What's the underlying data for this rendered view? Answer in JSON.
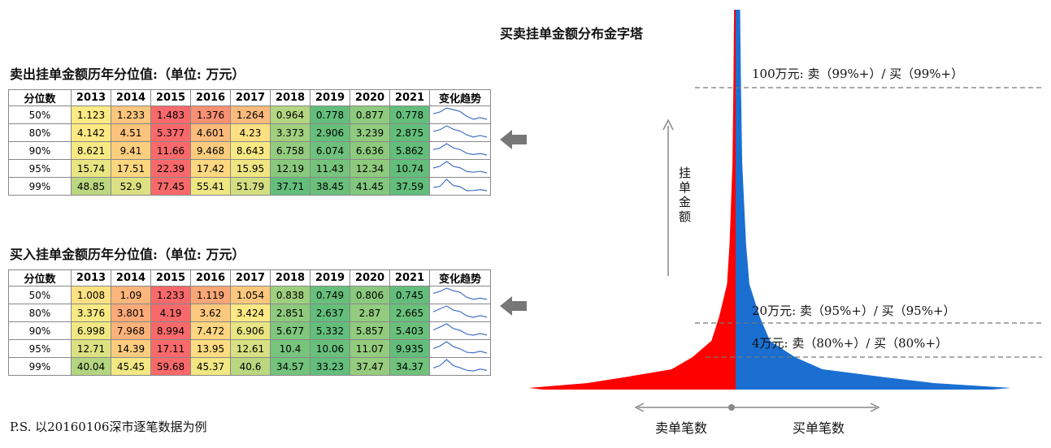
{
  "sell_table": {
    "title": "卖出挂单金额历年分位值:（单位: 万元）",
    "header": [
      "分位数",
      "2013",
      "2014",
      "2015",
      "2016",
      "2017",
      "2018",
      "2019",
      "2020",
      "2021",
      "变化趋势"
    ],
    "rows": [
      {
        "label": "50%",
        "values": [
          1.123,
          1.233,
          1.483,
          1.376,
          1.264,
          0.964,
          0.778,
          0.877,
          0.778
        ]
      },
      {
        "label": "80%",
        "values": [
          4.142,
          4.51,
          5.377,
          4.601,
          4.23,
          3.373,
          2.906,
          3.239,
          2.875
        ]
      },
      {
        "label": "90%",
        "values": [
          8.621,
          9.41,
          11.66,
          9.468,
          8.643,
          6.758,
          6.074,
          6.636,
          5.862
        ]
      },
      {
        "label": "95%",
        "values": [
          15.74,
          17.51,
          22.39,
          17.42,
          15.95,
          12.19,
          11.43,
          12.34,
          10.74
        ]
      },
      {
        "label": "99%",
        "values": [
          48.85,
          52.9,
          77.45,
          55.41,
          51.79,
          37.71,
          38.45,
          41.45,
          37.59
        ]
      }
    ]
  },
  "buy_table": {
    "title": "买入挂单金额历年分位值:（单位: 万元）",
    "header": [
      "分位数",
      "2013",
      "2014",
      "2015",
      "2016",
      "2017",
      "2018",
      "2019",
      "2020",
      "2021",
      "变化趋势"
    ],
    "rows": [
      {
        "label": "50%",
        "values": [
          1.008,
          1.09,
          1.233,
          1.119,
          1.054,
          0.838,
          0.749,
          0.806,
          0.745
        ]
      },
      {
        "label": "80%",
        "values": [
          3.376,
          3.801,
          4.19,
          3.62,
          3.424,
          2.851,
          2.637,
          2.87,
          2.665
        ]
      },
      {
        "label": "90%",
        "values": [
          6.998,
          7.968,
          8.994,
          7.472,
          6.906,
          5.677,
          5.332,
          5.857,
          5.403
        ]
      },
      {
        "label": "95%",
        "values": [
          12.71,
          14.39,
          17.11,
          13.95,
          12.61,
          10.4,
          10.06,
          11.07,
          9.935
        ]
      },
      {
        "label": "99%",
        "values": [
          40.04,
          45.45,
          59.68,
          45.37,
          40.6,
          34.57,
          33.23,
          37.47,
          34.37
        ]
      }
    ]
  },
  "pyramid": {
    "title": "买卖挂单金额分布金字塔",
    "y_axis_label": "挂单金额",
    "levels": [
      "100万元: 卖（99%+）/ 买（99%+）",
      "20万元: 卖（95%+）/ 买（95%+）",
      "4万元: 卖（80%+）/ 买（80%+）"
    ],
    "left_label": "卖单笔数",
    "right_label": "买单笔数"
  },
  "note": "P.S. 以20160106深市逐笔数据为例"
}
